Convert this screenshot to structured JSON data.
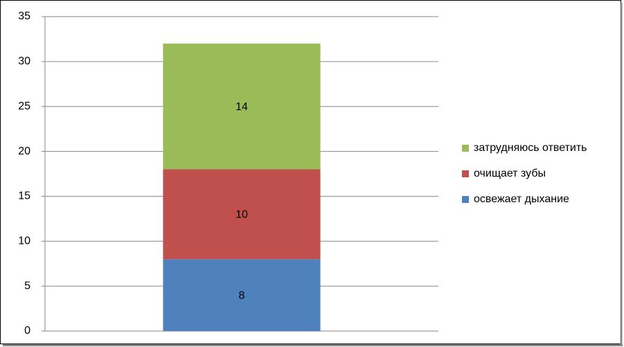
{
  "chart_data": {
    "type": "bar",
    "stacked": true,
    "categories": [
      null
    ],
    "series": [
      {
        "name": "освежает дыхание",
        "color": "#4f81bd",
        "values": [
          8
        ]
      },
      {
        "name": "очищает зубы",
        "color": "#c0504d",
        "values": [
          10
        ]
      },
      {
        "name": "затрудняюсь ответить",
        "color": "#9bbb59",
        "values": [
          14
        ]
      }
    ],
    "ylim": [
      0,
      35
    ],
    "yticks": [
      0,
      5,
      10,
      15,
      20,
      25,
      30,
      35
    ],
    "grid": true,
    "legend": "right"
  }
}
